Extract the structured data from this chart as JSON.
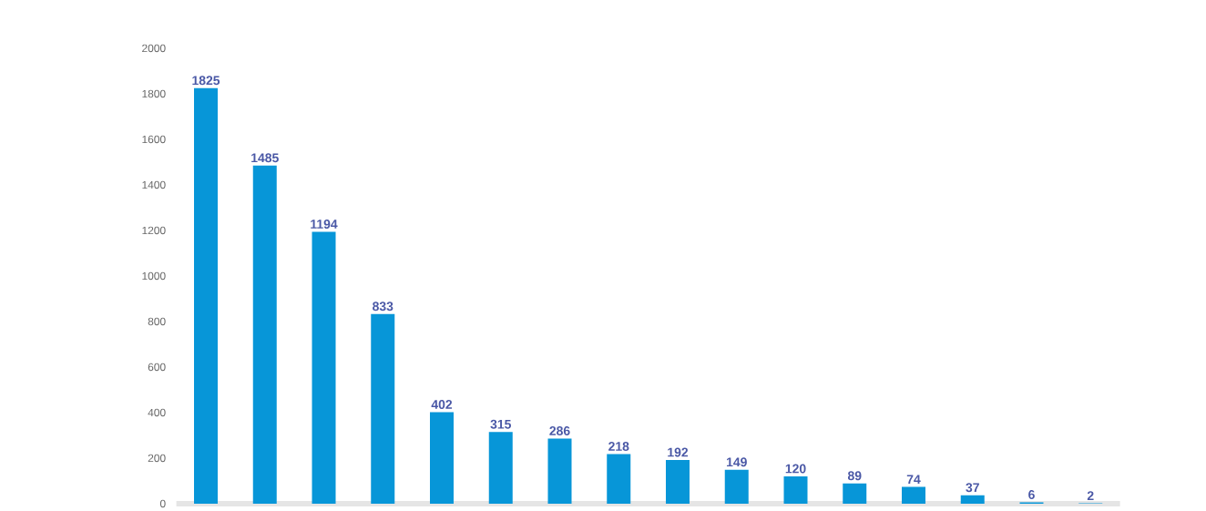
{
  "chart_data": {
    "type": "bar",
    "categories": [
      null,
      null,
      null,
      null,
      null,
      null,
      null,
      null,
      null,
      null,
      null,
      null,
      null,
      null,
      null,
      null
    ],
    "values": [
      1825,
      1485,
      1194,
      833,
      402,
      315,
      286,
      218,
      192,
      149,
      120,
      89,
      74,
      37,
      6,
      2
    ],
    "color": "#0796d8",
    "ylim": [
      0,
      2000
    ],
    "yticks": [
      0,
      200,
      400,
      600,
      800,
      1000,
      1200,
      1400,
      1600,
      1800,
      2000
    ],
    "data_labels": true
  }
}
